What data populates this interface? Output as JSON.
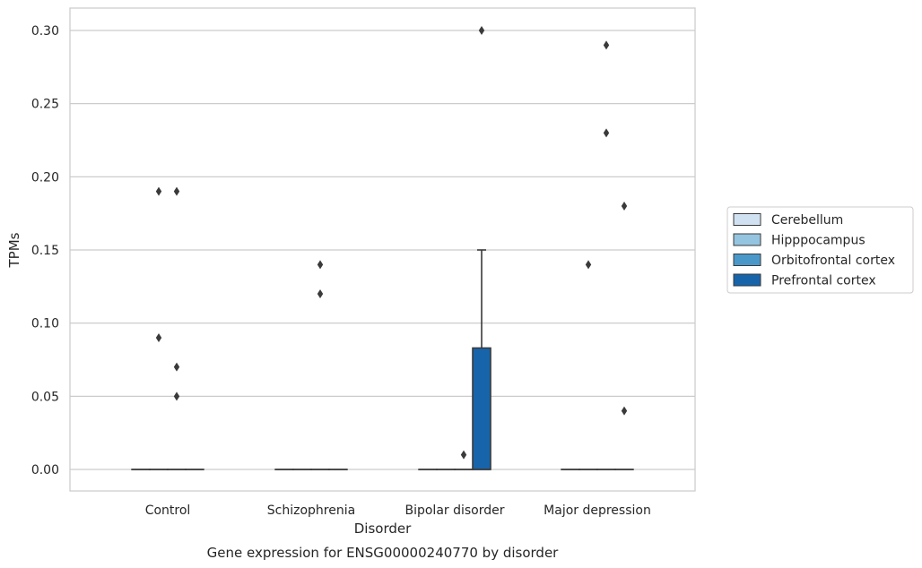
{
  "chart_data": {
    "type": "box",
    "xlabel": "Disorder",
    "ylabel": "TPMs",
    "caption": "Gene expression for ENSG00000240770 by disorder",
    "categories": [
      "Control",
      "Schizophrenia",
      "Bipolar disorder",
      "Major depression"
    ],
    "ylim": [
      -0.015,
      0.315
    ],
    "yticks": [
      0.0,
      0.05,
      0.1,
      0.15,
      0.2,
      0.25,
      0.3
    ],
    "ytick_labels": [
      "0.00",
      "0.05",
      "0.10",
      "0.15",
      "0.20",
      "0.25",
      "0.30"
    ],
    "grid": true,
    "legend_position": "right",
    "colors": {
      "Cerebellum": "#d0e1f2",
      "Hipppocampus": "#94c4df",
      "Orbitofrontal cortex": "#4a98c9",
      "Prefrontal cortex": "#1764ab"
    },
    "series": [
      {
        "name": "Cerebellum",
        "boxes": [
          {
            "category": "Control",
            "q1": 0,
            "median": 0,
            "q3": 0,
            "whisker_low": 0,
            "whisker_high": 0,
            "outliers": []
          },
          {
            "category": "Schizophrenia",
            "q1": 0,
            "median": 0,
            "q3": 0,
            "whisker_low": 0,
            "whisker_high": 0,
            "outliers": []
          },
          {
            "category": "Bipolar disorder",
            "q1": 0,
            "median": 0,
            "q3": 0,
            "whisker_low": 0,
            "whisker_high": 0,
            "outliers": []
          },
          {
            "category": "Major depression",
            "q1": 0,
            "median": 0,
            "q3": 0,
            "whisker_low": 0,
            "whisker_high": 0,
            "outliers": []
          }
        ]
      },
      {
        "name": "Hipppocampus",
        "boxes": [
          {
            "category": "Control",
            "q1": 0,
            "median": 0,
            "q3": 0,
            "whisker_low": 0,
            "whisker_high": 0,
            "outliers": [
              0.19,
              0.09
            ]
          },
          {
            "category": "Schizophrenia",
            "q1": 0,
            "median": 0,
            "q3": 0,
            "whisker_low": 0,
            "whisker_high": 0,
            "outliers": []
          },
          {
            "category": "Bipolar disorder",
            "q1": 0,
            "median": 0,
            "q3": 0,
            "whisker_low": 0,
            "whisker_high": 0,
            "outliers": []
          },
          {
            "category": "Major depression",
            "q1": 0,
            "median": 0,
            "q3": 0,
            "whisker_low": 0,
            "whisker_high": 0,
            "outliers": [
              0.14
            ]
          }
        ]
      },
      {
        "name": "Orbitofrontal cortex",
        "boxes": [
          {
            "category": "Control",
            "q1": 0,
            "median": 0,
            "q3": 0,
            "whisker_low": 0,
            "whisker_high": 0,
            "outliers": [
              0.19,
              0.07,
              0.05
            ]
          },
          {
            "category": "Schizophrenia",
            "q1": 0,
            "median": 0,
            "q3": 0,
            "whisker_low": 0,
            "whisker_high": 0,
            "outliers": [
              0.14,
              0.12
            ]
          },
          {
            "category": "Bipolar disorder",
            "q1": 0,
            "median": 0,
            "q3": 0,
            "whisker_low": 0,
            "whisker_high": 0,
            "outliers": [
              0.01
            ]
          },
          {
            "category": "Major depression",
            "q1": 0,
            "median": 0,
            "q3": 0,
            "whisker_low": 0,
            "whisker_high": 0,
            "outliers": [
              0.29,
              0.23
            ]
          }
        ]
      },
      {
        "name": "Prefrontal cortex",
        "boxes": [
          {
            "category": "Control",
            "q1": 0,
            "median": 0,
            "q3": 0,
            "whisker_low": 0,
            "whisker_high": 0,
            "outliers": []
          },
          {
            "category": "Schizophrenia",
            "q1": 0,
            "median": 0,
            "q3": 0,
            "whisker_low": 0,
            "whisker_high": 0,
            "outliers": []
          },
          {
            "category": "Bipolar disorder",
            "q1": 0,
            "median": 0,
            "q3": 0.083,
            "whisker_low": 0,
            "whisker_high": 0.15,
            "outliers": [
              0.3
            ]
          },
          {
            "category": "Major depression",
            "q1": 0,
            "median": 0,
            "q3": 0,
            "whisker_low": 0,
            "whisker_high": 0,
            "outliers": [
              0.18,
              0.04
            ]
          }
        ]
      }
    ]
  }
}
